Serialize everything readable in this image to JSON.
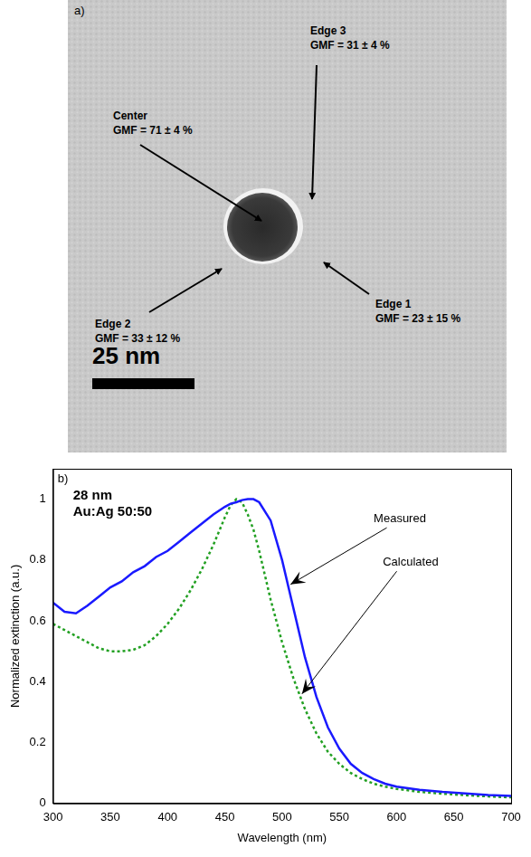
{
  "image": {
    "letter": "a)",
    "labels": [
      {
        "name": "Center",
        "text": "GMF = 71 ± 4 %"
      },
      {
        "name": "Edge 3",
        "text": "GMF = 31 ± 4 %"
      },
      {
        "name": "Edge 2",
        "text": "GMF = 33 ± 12 %"
      },
      {
        "name": "Edge 1",
        "text": "GMF = 23 ± 15 %"
      }
    ],
    "scale_bar": "25 nm"
  },
  "chart_data": {
    "type": "line",
    "letter": "b)",
    "annotations": [
      "28 nm",
      "Au:Ag 50:50"
    ],
    "xlabel": "Wavelength (nm)",
    "ylabel": "Normalized extinction (a.u.)",
    "x": [
      300,
      310,
      320,
      330,
      340,
      350,
      360,
      370,
      380,
      390,
      400,
      410,
      420,
      430,
      440,
      450,
      455,
      460,
      465,
      470,
      475,
      480,
      490,
      500,
      510,
      520,
      530,
      540,
      550,
      560,
      570,
      580,
      590,
      600,
      620,
      640,
      660,
      680,
      700
    ],
    "series": [
      {
        "name": "Measured",
        "color": "#1a1aff",
        "line_style": "solid",
        "values": [
          0.66,
          0.63,
          0.625,
          0.65,
          0.68,
          0.71,
          0.73,
          0.76,
          0.78,
          0.81,
          0.83,
          0.86,
          0.89,
          0.92,
          0.95,
          0.975,
          0.985,
          0.99,
          0.997,
          1.0,
          1.0,
          0.99,
          0.93,
          0.8,
          0.64,
          0.48,
          0.35,
          0.25,
          0.18,
          0.13,
          0.1,
          0.08,
          0.065,
          0.055,
          0.045,
          0.038,
          0.033,
          0.028,
          0.025
        ]
      },
      {
        "name": "Calculated",
        "color": "#22a022",
        "line_style": "dotted",
        "values": [
          0.59,
          0.57,
          0.55,
          0.53,
          0.51,
          0.5,
          0.5,
          0.505,
          0.52,
          0.55,
          0.59,
          0.64,
          0.7,
          0.77,
          0.85,
          0.94,
          0.98,
          1.0,
          0.99,
          0.95,
          0.9,
          0.83,
          0.67,
          0.53,
          0.41,
          0.31,
          0.23,
          0.17,
          0.13,
          0.1,
          0.08,
          0.065,
          0.055,
          0.048,
          0.038,
          0.032,
          0.027,
          0.023,
          0.02
        ]
      }
    ],
    "xlim": [
      300,
      700
    ],
    "xticks": [
      300,
      350,
      400,
      450,
      500,
      550,
      600,
      650,
      700
    ],
    "ylim": [
      0,
      1.1
    ],
    "yticks": [
      0,
      0.2,
      0.4,
      0.6,
      0.8,
      1
    ],
    "grid": false
  }
}
